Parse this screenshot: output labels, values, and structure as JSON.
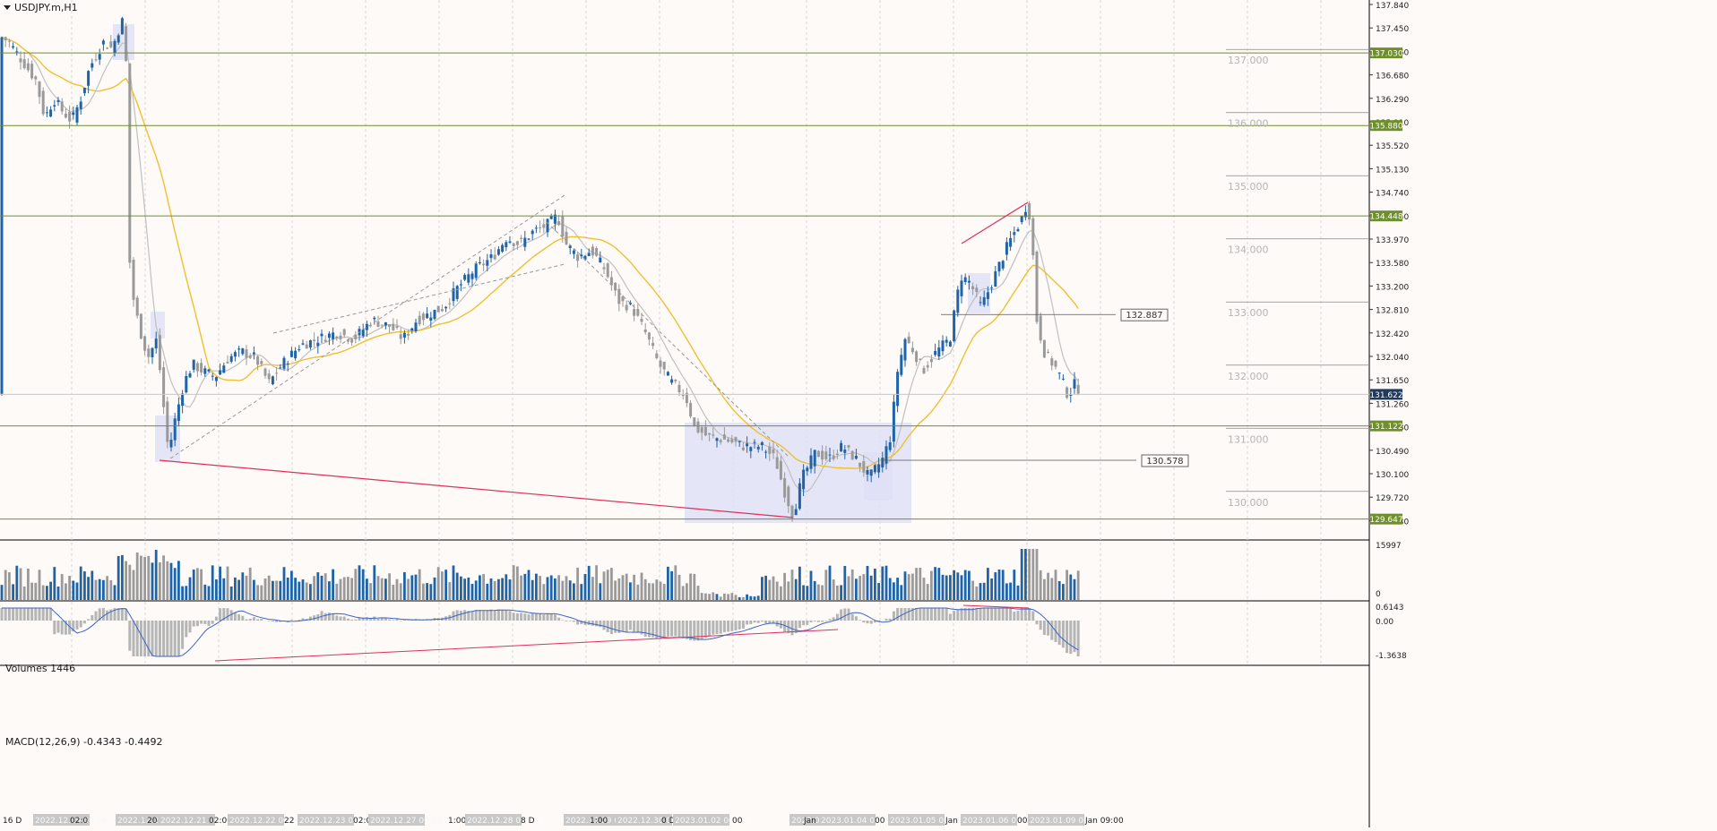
{
  "symbol_label": "USDJPY.m,H1",
  "volumes_label": "Volumes 1446",
  "macd_label": "MACD(12,26,9) -0.4343 -0.4492",
  "colors": {
    "background": "#fdfaf8",
    "bull": "#1f64a8",
    "bear": "#9a9a9a",
    "level_line": "#6f8f2d",
    "level_tag": "#6f8f2d",
    "ma_fast": "#c0c0c0",
    "ma_slow": "#f0c030",
    "trend_red": "#e0305a",
    "zone": "#dfe1f6",
    "macd_hist": "#b5b5b5",
    "macd_signal": "#3a64c8"
  },
  "price_axis_ticks": [
    "137.840",
    "137.450",
    "137.060",
    "136.680",
    "136.290",
    "135.910",
    "135.520",
    "135.130",
    "134.740",
    "134.350",
    "133.970",
    "133.580",
    "133.200",
    "132.810",
    "132.420",
    "132.040",
    "131.650",
    "131.260",
    "130.880",
    "130.490",
    "130.100",
    "129.720",
    "129.330"
  ],
  "level_tags": [
    "137.030",
    "135.880",
    "134.448",
    "131.622",
    "131.122",
    "129.647"
  ],
  "round_labels": [
    "137.000",
    "136.000",
    "135.000",
    "134.000",
    "133.000",
    "132.000",
    "131.000",
    "130.000"
  ],
  "price_callouts": [
    "132.887",
    "130.578"
  ],
  "volume_axis": [
    "15997",
    "0"
  ],
  "macd_axis": [
    "0.6143",
    "0.00",
    "-1.3638"
  ],
  "time_labels": [
    "16 D",
    "2022.12.19 00:00",
    "02:0",
    "2022.12.20 00:00",
    "20 D",
    "2022.12.21 00:00",
    "02:00",
    "2022.12.22 00:00",
    "22 D",
    "2022.12.23 00:00",
    "02:0",
    "2022.12.27 00:00",
    "1:00",
    "2022.12.28 00:00",
    "8 D",
    "2022.12.29 00:00",
    "1:00",
    "2022.12.30 00:00",
    "0 D",
    "2023.01.02 00:00",
    "00",
    "2023.01.03 00:00",
    "Jan",
    "2023.01.04 00:00",
    "00",
    "2023.01.05 00:00",
    "Jan",
    "2023.01.06 00:00",
    "00",
    "2023.01.09 00:00",
    "Jan 09:00"
  ],
  "chart_data": {
    "type": "candlestick",
    "symbol": "USDJPY.m",
    "timeframe": "H1",
    "x_range": [
      "2022.12.16",
      "2023.01.09 09:00"
    ],
    "ylim": [
      129.33,
      137.84
    ],
    "price_path": [
      [
        0,
        137.3
      ],
      [
        10,
        137.2
      ],
      [
        25,
        136.9
      ],
      [
        40,
        136.6
      ],
      [
        50,
        136.0
      ],
      [
        60,
        136.3
      ],
      [
        70,
        136.1
      ],
      [
        80,
        135.95
      ],
      [
        90,
        136.3
      ],
      [
        100,
        136.8
      ],
      [
        115,
        137.2
      ],
      [
        125,
        137.1
      ],
      [
        135,
        137.5
      ],
      [
        140,
        137.6
      ],
      [
        143,
        134.0
      ],
      [
        148,
        133.2
      ],
      [
        155,
        132.7
      ],
      [
        165,
        132.2
      ],
      [
        175,
        132.5
      ],
      [
        182,
        131.5
      ],
      [
        188,
        130.7
      ],
      [
        195,
        131.2
      ],
      [
        205,
        131.8
      ],
      [
        215,
        132.1
      ],
      [
        225,
        132.0
      ],
      [
        240,
        131.9
      ],
      [
        255,
        132.2
      ],
      [
        270,
        132.3
      ],
      [
        285,
        132.2
      ],
      [
        300,
        131.8
      ],
      [
        315,
        132.1
      ],
      [
        335,
        132.4
      ],
      [
        355,
        132.5
      ],
      [
        375,
        132.6
      ],
      [
        395,
        132.5
      ],
      [
        415,
        132.8
      ],
      [
        435,
        132.7
      ],
      [
        450,
        132.5
      ],
      [
        465,
        132.8
      ],
      [
        480,
        132.9
      ],
      [
        495,
        133.0
      ],
      [
        510,
        133.3
      ],
      [
        530,
        133.6
      ],
      [
        550,
        133.8
      ],
      [
        565,
        134.1
      ],
      [
        580,
        134.0
      ],
      [
        595,
        134.2
      ],
      [
        610,
        134.3
      ],
      [
        622,
        134.45
      ],
      [
        632,
        134.0
      ],
      [
        645,
        133.8
      ],
      [
        660,
        133.9
      ],
      [
        675,
        133.6
      ],
      [
        690,
        133.1
      ],
      [
        705,
        133.0
      ],
      [
        720,
        132.6
      ],
      [
        735,
        132.1
      ],
      [
        750,
        131.8
      ],
      [
        765,
        131.6
      ],
      [
        775,
        131.1
      ],
      [
        790,
        130.95
      ],
      [
        810,
        130.9
      ],
      [
        830,
        130.8
      ],
      [
        850,
        130.8
      ],
      [
        865,
        130.6
      ],
      [
        875,
        130.1
      ],
      [
        885,
        129.7
      ],
      [
        895,
        130.3
      ],
      [
        910,
        130.7
      ],
      [
        925,
        130.6
      ],
      [
        940,
        130.8
      ],
      [
        955,
        130.6
      ],
      [
        970,
        130.3
      ],
      [
        985,
        130.6
      ],
      [
        995,
        131.0
      ],
      [
        1000,
        131.9
      ],
      [
        1010,
        132.5
      ],
      [
        1020,
        132.3
      ],
      [
        1030,
        132.0
      ],
      [
        1045,
        132.3
      ],
      [
        1060,
        132.5
      ],
      [
        1072,
        133.5
      ],
      [
        1082,
        133.4
      ],
      [
        1095,
        133.0
      ],
      [
        1110,
        133.5
      ],
      [
        1125,
        134.0
      ],
      [
        1140,
        134.4
      ],
      [
        1147,
        134.7
      ],
      [
        1152,
        134.0
      ],
      [
        1157,
        132.8
      ],
      [
        1165,
        132.3
      ],
      [
        1180,
        132.0
      ],
      [
        1192,
        131.6
      ],
      [
        1200,
        131.8
      ],
      [
        1207,
        131.62
      ]
    ],
    "levels": [
      137.03,
      135.88,
      134.448,
      131.622,
      131.122,
      129.647
    ],
    "callouts": [
      132.887,
      130.578
    ],
    "volume_max": 15997,
    "macd": {
      "params": "12,26,9",
      "main": -0.4343,
      "signal": -0.4492,
      "ylim": [
        -1.3638,
        0.6143
      ]
    }
  }
}
